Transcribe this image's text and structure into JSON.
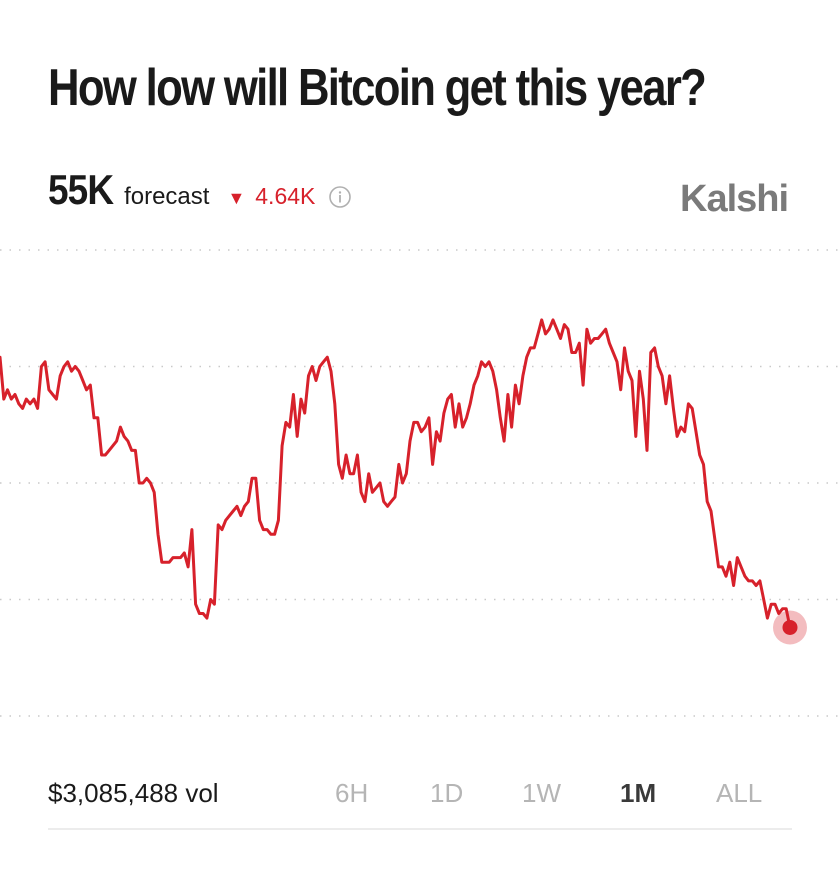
{
  "title": "How low will Bitcoin get this year?",
  "forecast": {
    "value": "55K",
    "label": "forecast",
    "change_symbol": "▼",
    "change": "4.64K",
    "change_color": "#d7212b",
    "info_icon": "info-circle-icon"
  },
  "brand": "Kalshi",
  "footer": {
    "volume": "$3,085,488 vol",
    "ranges": [
      "6H",
      "1D",
      "1W",
      "1M",
      "ALL"
    ],
    "active_range": "1M"
  },
  "chart_data": {
    "type": "line",
    "title": "",
    "xlabel": "",
    "ylabel": "",
    "grid": true,
    "ylim": [
      0,
      100
    ],
    "line_color": "#d7212b",
    "series": [
      {
        "values": [
          77,
          68,
          70,
          68,
          69,
          67,
          66,
          68,
          67,
          68,
          66,
          75,
          76,
          70,
          69,
          68,
          73,
          75,
          76,
          74,
          75,
          74,
          72,
          70,
          71,
          64,
          64,
          56,
          56,
          57,
          58,
          59,
          62,
          60,
          59,
          57,
          57,
          50,
          50,
          51,
          50,
          48,
          39,
          33,
          33,
          33,
          34,
          34,
          34,
          35,
          32,
          40,
          24,
          22,
          22,
          21,
          25,
          24,
          41,
          40,
          42,
          43,
          44,
          45,
          43,
          45,
          46,
          51,
          51,
          42,
          40,
          40,
          39,
          39,
          42,
          58,
          63,
          62,
          69,
          60,
          68,
          65,
          73,
          75,
          72,
          75,
          76,
          77,
          74,
          67,
          54,
          51,
          56,
          52,
          52,
          56,
          48,
          46,
          52,
          48,
          49,
          50,
          46,
          45,
          46,
          47,
          54,
          50,
          52,
          59,
          63,
          63,
          61,
          62,
          64,
          54,
          61,
          59,
          65,
          68,
          69,
          62,
          67,
          62,
          64,
          67,
          71,
          73,
          76,
          75,
          76,
          74,
          70,
          64,
          59,
          69,
          62,
          71,
          67,
          73,
          77,
          79,
          79,
          82,
          85,
          82,
          83,
          85,
          83,
          81,
          84,
          83,
          78,
          78,
          80,
          71,
          83,
          80,
          81,
          81,
          82,
          83,
          80,
          78,
          76,
          70,
          79,
          74,
          72,
          60,
          74,
          68,
          57,
          78,
          79,
          75,
          73,
          67,
          73,
          66,
          60,
          62,
          61,
          67,
          66,
          61,
          56,
          54,
          46,
          44,
          38,
          32,
          32,
          30,
          33,
          28,
          34,
          32,
          30,
          29,
          29,
          28,
          29,
          25,
          21,
          24,
          24,
          22,
          23,
          23,
          19
        ]
      }
    ]
  }
}
